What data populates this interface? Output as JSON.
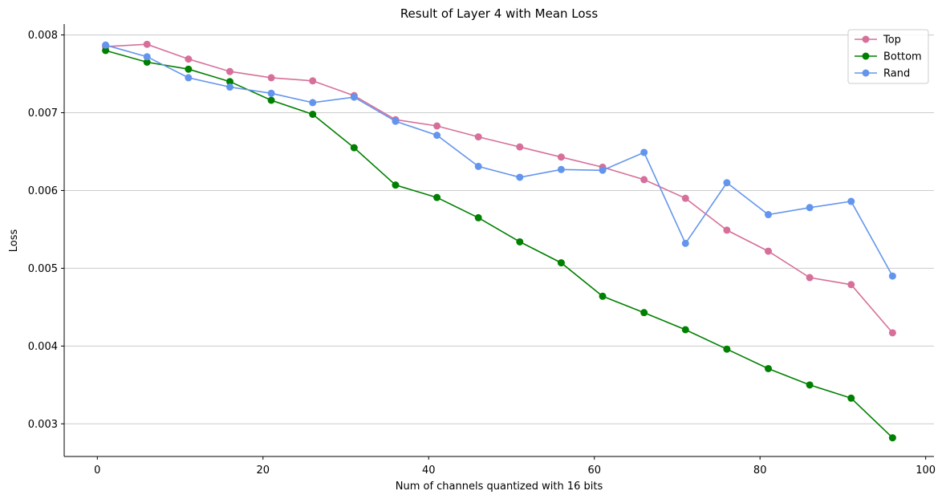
{
  "chart_data": {
    "type": "line",
    "title": "Result of Layer 4 with Mean Loss",
    "xlabel": "Num of channels quantized with 16 bits",
    "ylabel": "Loss",
    "xlim": [
      -4,
      101
    ],
    "ylim": [
      0.00258,
      0.00814
    ],
    "xticks": [
      0,
      20,
      40,
      60,
      80,
      100
    ],
    "yticks": [
      0.003,
      0.004,
      0.005,
      0.006,
      0.007,
      0.008
    ],
    "xtick_labels": [
      "0",
      "20",
      "40",
      "60",
      "80",
      "100"
    ],
    "ytick_labels": [
      "0.003",
      "0.004",
      "0.005",
      "0.006",
      "0.007",
      "0.008"
    ],
    "grid": "horizontal",
    "legend_position": "top-right",
    "x": [
      1,
      6,
      11,
      16,
      21,
      26,
      31,
      36,
      41,
      46,
      51,
      56,
      61,
      66,
      71,
      76,
      81,
      86,
      91,
      96
    ],
    "series": [
      {
        "name": "Top",
        "color": "#d6709a",
        "values": [
          0.00785,
          0.00788,
          0.00769,
          0.00753,
          0.00745,
          0.00741,
          0.00722,
          0.00691,
          0.00683,
          0.00669,
          0.00656,
          0.00643,
          0.0063,
          0.00614,
          0.0059,
          0.00549,
          0.00522,
          0.00488,
          0.00479,
          0.00417
        ]
      },
      {
        "name": "Bottom",
        "color": "#008000",
        "values": [
          0.0078,
          0.00765,
          0.00756,
          0.0074,
          0.00716,
          0.00698,
          0.00655,
          0.00607,
          0.00591,
          0.00565,
          0.00534,
          0.00507,
          0.00464,
          0.00443,
          0.00421,
          0.00396,
          0.00371,
          0.0035,
          0.00333,
          0.00282
        ]
      },
      {
        "name": "Rand",
        "color": "#6495ed",
        "values": [
          0.00787,
          0.00772,
          0.00745,
          0.00733,
          0.00725,
          0.00713,
          0.0072,
          0.00689,
          0.00671,
          0.00631,
          0.00617,
          0.00627,
          0.00626,
          0.00649,
          0.00532,
          0.0061,
          0.00569,
          0.00578,
          0.00586,
          0.0049
        ]
      }
    ]
  }
}
